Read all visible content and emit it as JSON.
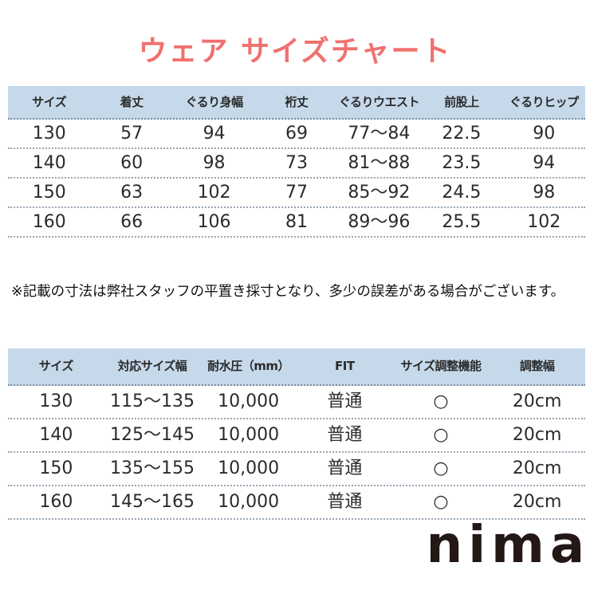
{
  "page": {
    "title": "ウェア サイズチャート",
    "note": "※記載の寸法は弊社スタッフの平置き採寸となり、多少の誤差がある場合がございます。",
    "logo": "nima",
    "colors": {
      "title_accent": "#f0716f",
      "table_header_bg": "#c5d9ea",
      "separator": "#98a6b4",
      "logo_text": "#231815"
    }
  },
  "size_table": {
    "headers": [
      "サイズ",
      "着丈",
      "ぐるり身幅",
      "裄丈",
      "ぐるりウエスト",
      "前股上",
      "ぐるりヒップ"
    ],
    "rows": [
      [
        "130",
        "57",
        "94",
        "69",
        "77〜84",
        "22.5",
        "90"
      ],
      [
        "140",
        "60",
        "98",
        "73",
        "81〜88",
        "23.5",
        "94"
      ],
      [
        "150",
        "63",
        "102",
        "77",
        "85〜92",
        "24.5",
        "98"
      ],
      [
        "160",
        "66",
        "106",
        "81",
        "89〜96",
        "25.5",
        "102"
      ]
    ]
  },
  "spec_table": {
    "headers": [
      "サイズ",
      "対応サイズ幅",
      "耐水圧（mm）",
      "FIT",
      "サイズ調整機能",
      "調整幅"
    ],
    "rows": [
      [
        "130",
        "115〜135",
        "10,000",
        "普通",
        "○",
        "20cm"
      ],
      [
        "140",
        "125〜145",
        "10,000",
        "普通",
        "○",
        "20cm"
      ],
      [
        "150",
        "135〜155",
        "10,000",
        "普通",
        "○",
        "20cm"
      ],
      [
        "160",
        "145〜165",
        "10,000",
        "普通",
        "○",
        "20cm"
      ]
    ]
  }
}
